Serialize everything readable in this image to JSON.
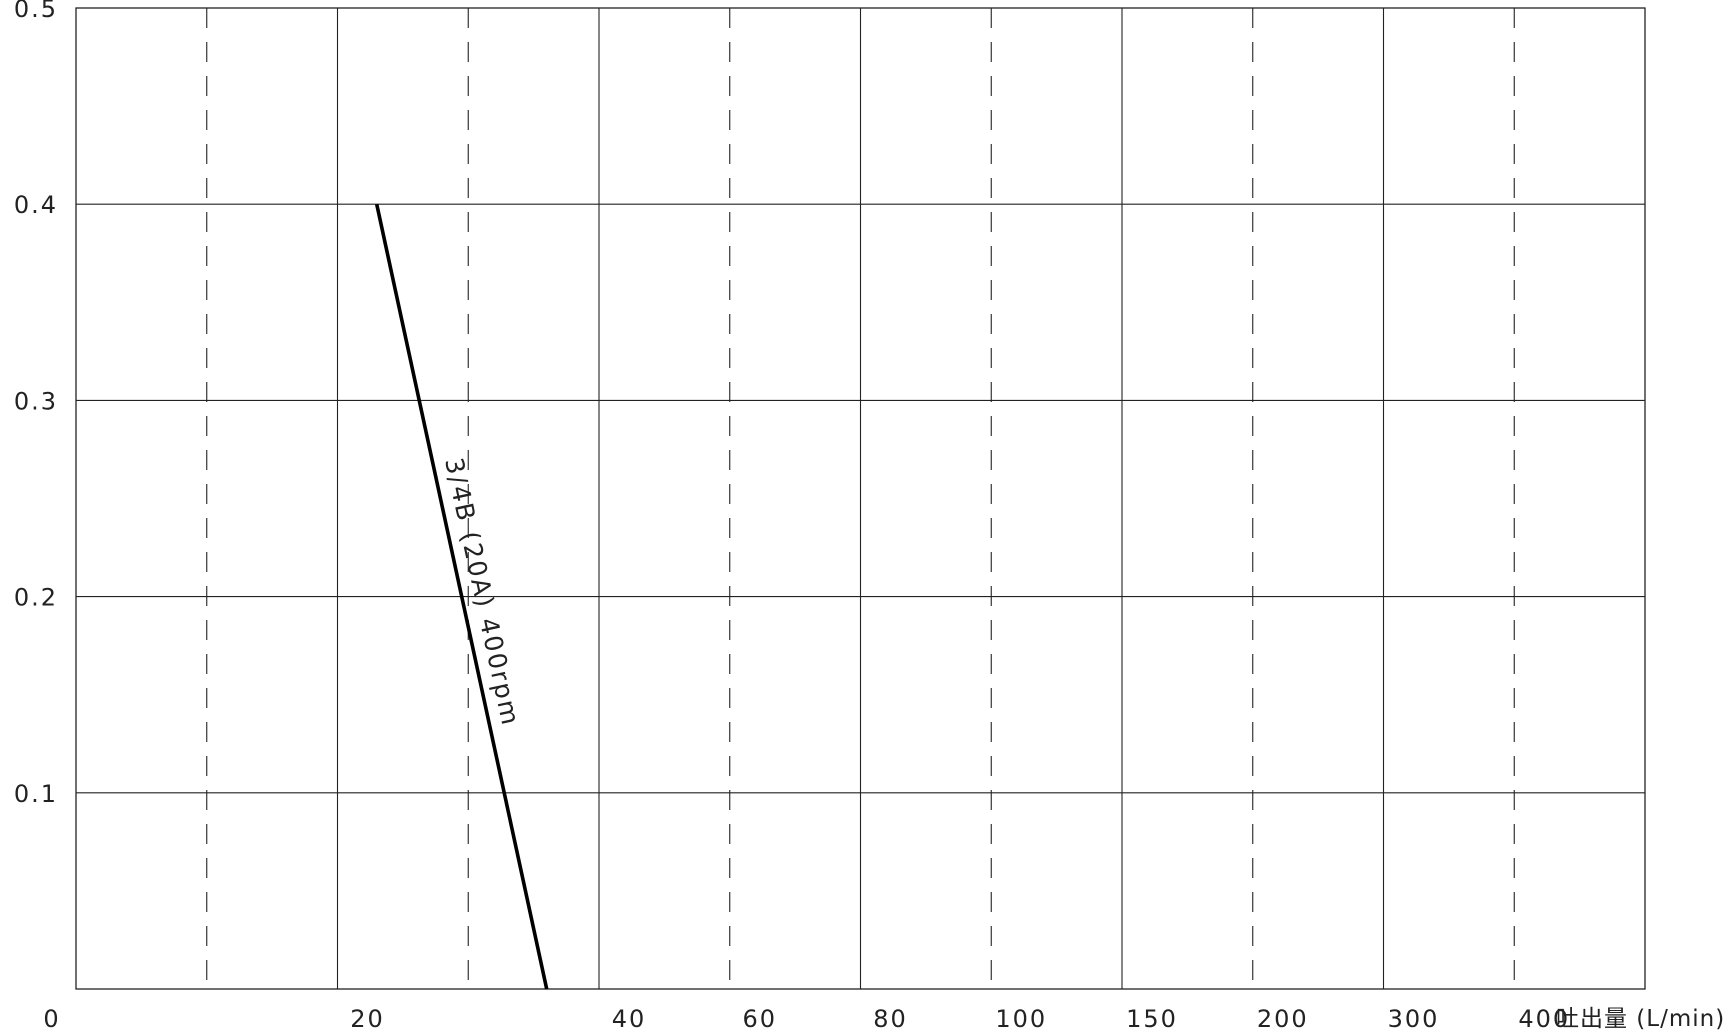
{
  "chart_data": {
    "type": "line",
    "title": "",
    "x_axis": {
      "scale": "non-uniform",
      "ticks": [
        "0",
        "20",
        "40",
        "60",
        "80",
        "100",
        "150",
        "200",
        "300",
        "400"
      ],
      "unit_label": "吐出量 (L/min)"
    },
    "y_axis": {
      "ticks": [
        "0.1",
        "0.2",
        "0.3",
        "0.4",
        "0.5"
      ],
      "ylim": [
        0,
        0.5
      ]
    },
    "grid": true,
    "series": [
      {
        "name": "3/4B (20A) 400rpm",
        "color": "#000000",
        "x": [
          23,
          36
        ],
        "y": [
          0.4,
          0
        ]
      }
    ]
  }
}
